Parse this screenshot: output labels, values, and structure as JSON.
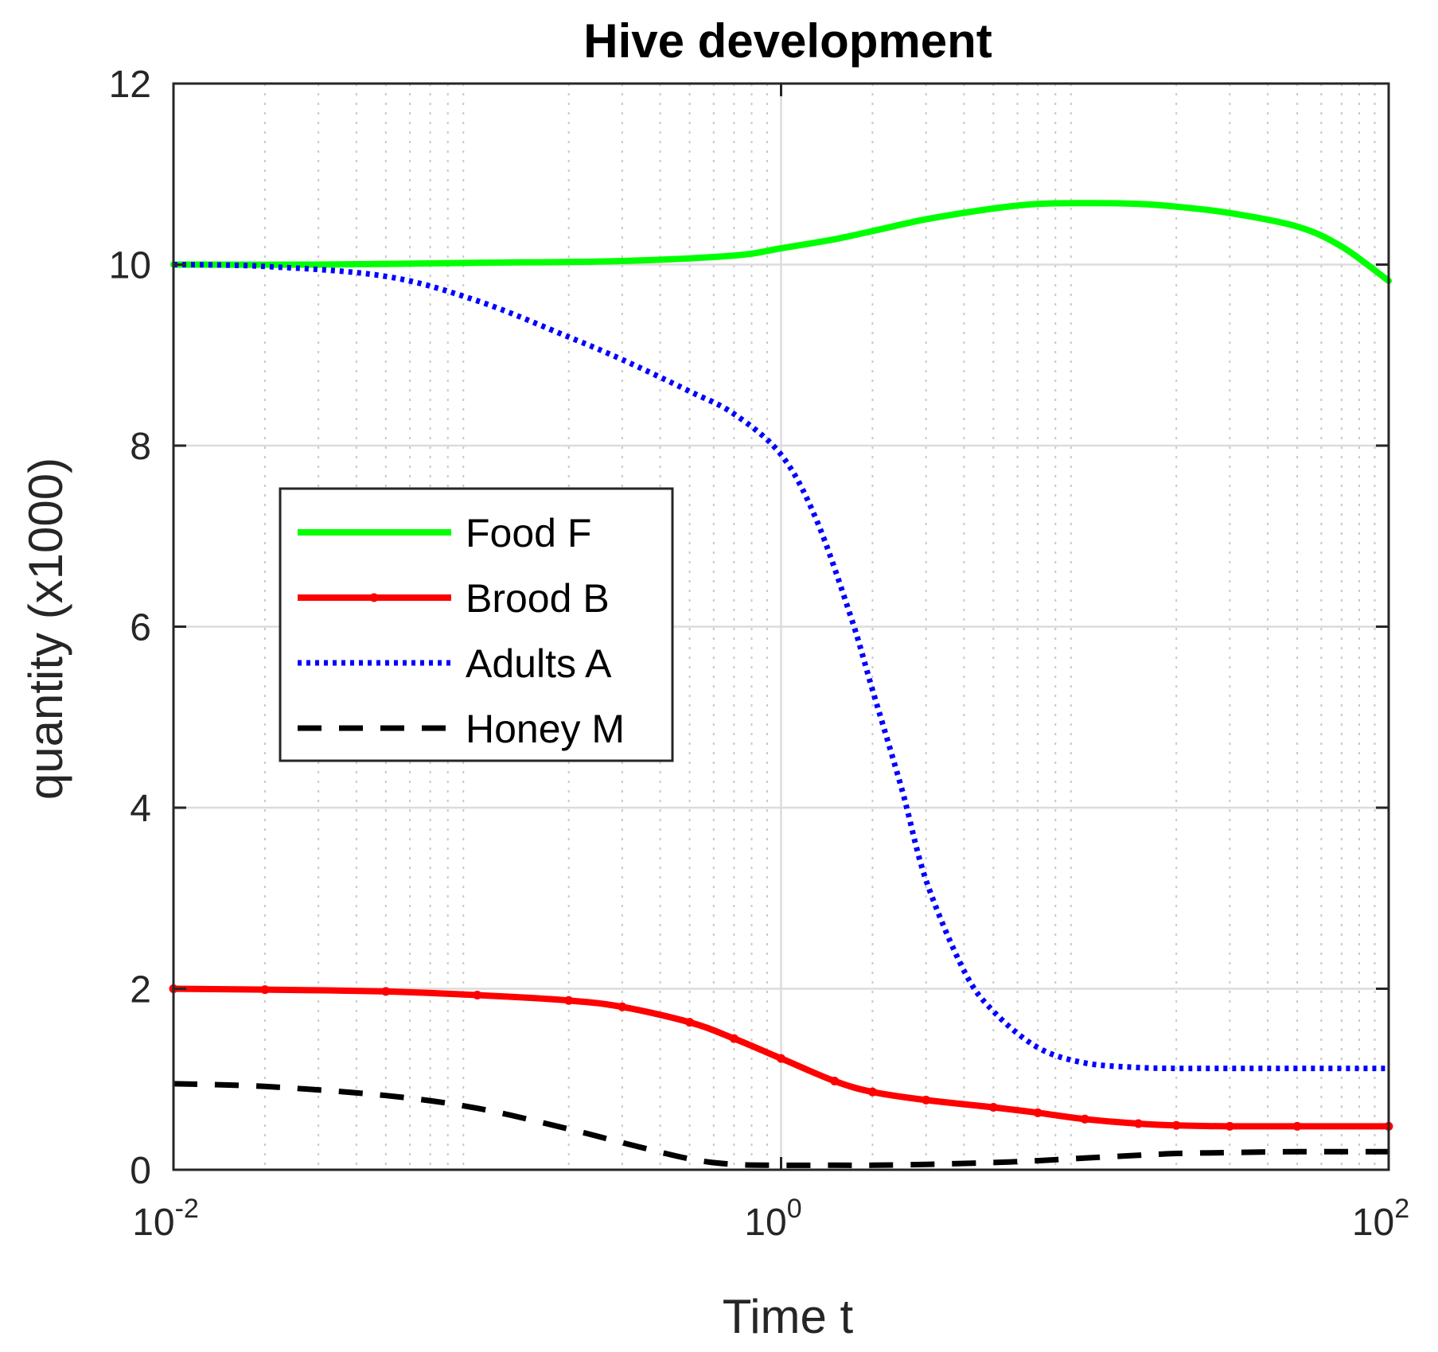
{
  "chart_data": {
    "type": "line",
    "title": "Hive development",
    "xlabel": "Time t",
    "ylabel": "quantity (x1000)",
    "xscale": "log",
    "xlim": [
      0.01,
      100
    ],
    "ylim": [
      0,
      12
    ],
    "grid": true,
    "minor_grid_x": true,
    "legend_location": "west",
    "yticks": [
      0,
      2,
      4,
      6,
      8,
      10,
      12
    ],
    "xticks": [
      {
        "value": 0.01,
        "base": "10",
        "exp": "-2"
      },
      {
        "value": 1,
        "base": "10",
        "exp": "0"
      },
      {
        "value": 100,
        "base": "10",
        "exp": "2"
      }
    ],
    "series": [
      {
        "name": "Food F",
        "color": "#00ff00",
        "style": "solid",
        "x": [
          0.01,
          0.03,
          0.1,
          0.3,
          0.7,
          1,
          1.5,
          2,
          3,
          5,
          7,
          10,
          15,
          20,
          30,
          50,
          70,
          100
        ],
        "y": [
          10.0,
          10.0,
          10.02,
          10.04,
          10.1,
          10.18,
          10.28,
          10.37,
          10.5,
          10.62,
          10.67,
          10.68,
          10.67,
          10.64,
          10.57,
          10.42,
          10.2,
          9.82
        ]
      },
      {
        "name": "Brood B",
        "color": "#ff0000",
        "style": "solid-dot",
        "x": [
          0.01,
          0.02,
          0.05,
          0.1,
          0.2,
          0.3,
          0.5,
          0.7,
          1,
          1.5,
          2,
          3,
          5,
          7,
          10,
          15,
          20,
          30,
          50,
          100
        ],
        "y": [
          2.0,
          1.99,
          1.97,
          1.93,
          1.87,
          1.8,
          1.63,
          1.45,
          1.23,
          0.98,
          0.86,
          0.77,
          0.69,
          0.63,
          0.56,
          0.51,
          0.49,
          0.48,
          0.48,
          0.48
        ]
      },
      {
        "name": "Adults A",
        "color": "#0000ff",
        "style": "dotted",
        "x": [
          0.01,
          0.02,
          0.05,
          0.1,
          0.2,
          0.3,
          0.5,
          0.7,
          1,
          1.3,
          1.7,
          2,
          2.5,
          3,
          4,
          5,
          7,
          10,
          15,
          20,
          30,
          50,
          100
        ],
        "y": [
          10.0,
          9.98,
          9.87,
          9.6,
          9.2,
          8.95,
          8.6,
          8.35,
          7.9,
          7.2,
          6.1,
          5.3,
          4.2,
          3.2,
          2.2,
          1.75,
          1.35,
          1.18,
          1.13,
          1.12,
          1.12,
          1.12,
          1.12
        ]
      },
      {
        "name": "Honey M",
        "color": "#000000",
        "style": "dashed",
        "x": [
          0.01,
          0.02,
          0.05,
          0.1,
          0.2,
          0.3,
          0.5,
          0.7,
          1,
          1.5,
          2,
          3,
          5,
          7,
          10,
          15,
          20,
          30,
          50,
          100
        ],
        "y": [
          0.95,
          0.92,
          0.82,
          0.68,
          0.45,
          0.3,
          0.12,
          0.06,
          0.05,
          0.05,
          0.05,
          0.06,
          0.08,
          0.1,
          0.13,
          0.16,
          0.18,
          0.19,
          0.2,
          0.2
        ]
      }
    ]
  }
}
